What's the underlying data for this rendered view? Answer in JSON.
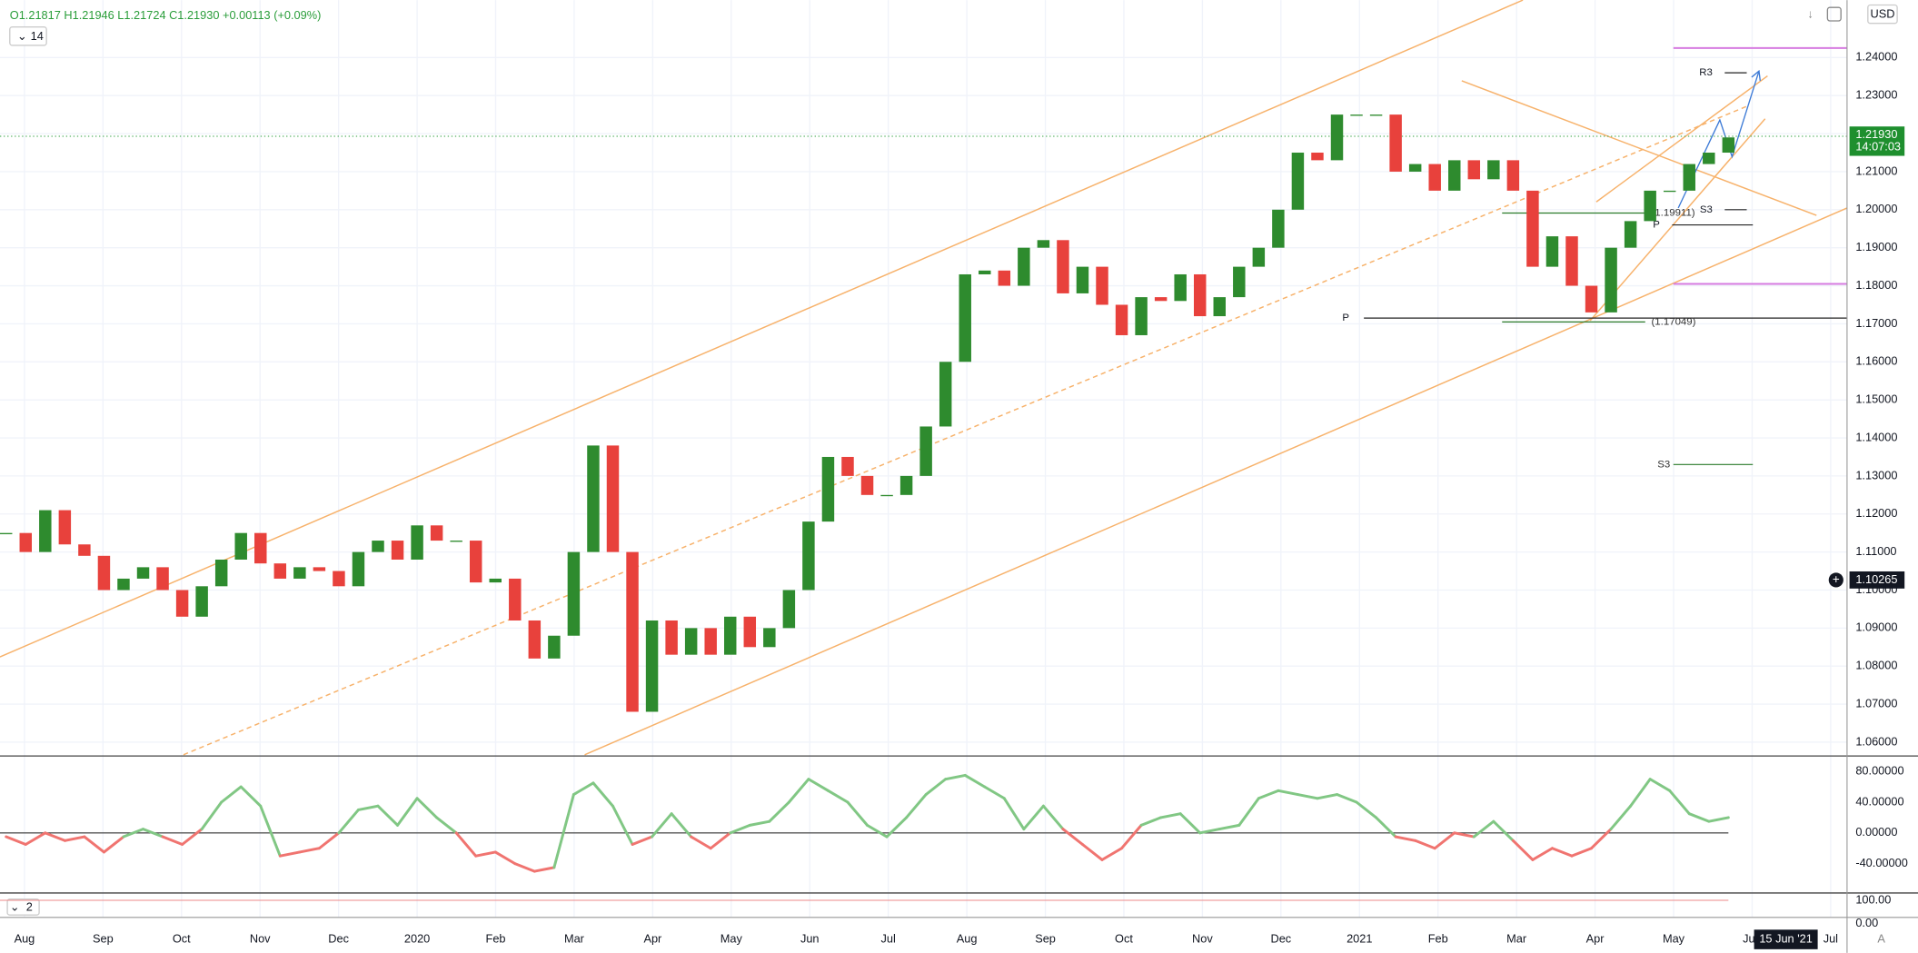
{
  "chart_data": {
    "type": "candlestick",
    "header": {
      "ohlc": "O1.21817 H1.21946 L1.21724 C1.21930 +0.00113 (+0.09%)",
      "interval": "14",
      "currency": "USD"
    },
    "categories": [
      "Aug",
      "Sep",
      "Oct",
      "Nov",
      "Dec",
      "2020",
      "Feb",
      "Mar",
      "Apr",
      "May",
      "Jun",
      "Jul",
      "Aug",
      "Sep",
      "Oct",
      "Nov",
      "Dec",
      "2021",
      "Feb",
      "Mar",
      "Apr",
      "May",
      "Jun",
      "Jul"
    ],
    "close": [
      1.115,
      1.11,
      1.121,
      1.112,
      1.109,
      1.1,
      1.103,
      1.106,
      1.1,
      1.093,
      1.101,
      1.108,
      1.115,
      1.107,
      1.103,
      1.106,
      1.105,
      1.101,
      1.11,
      1.113,
      1.108,
      1.117,
      1.113,
      1.113,
      1.102,
      1.103,
      1.092,
      1.082,
      1.088,
      1.11,
      1.138,
      1.11,
      1.068,
      1.092,
      1.083,
      1.09,
      1.083,
      1.093,
      1.085,
      1.09,
      1.1,
      1.118,
      1.135,
      1.13,
      1.125,
      1.125,
      1.13,
      1.143,
      1.16,
      1.183,
      1.184,
      1.18,
      1.19,
      1.192,
      1.178,
      1.185,
      1.175,
      1.167,
      1.177,
      1.176,
      1.183,
      1.172,
      1.177,
      1.185,
      1.19,
      1.2,
      1.215,
      1.213,
      1.225,
      1.225,
      1.225,
      1.21,
      1.212,
      1.205,
      1.213,
      1.208,
      1.213,
      1.205,
      1.185,
      1.193,
      1.18,
      1.173,
      1.19,
      1.197,
      1.205,
      1.205,
      1.212,
      1.215,
      1.219
    ],
    "up_color": "#2e8b2e",
    "down_color": "#e8413c",
    "ylim": [
      1.0567,
      1.2551
    ],
    "yticks": [
      {
        "value": 1.06,
        "label": "1.06000"
      },
      {
        "value": 1.07,
        "label": "1.07000"
      },
      {
        "value": 1.08,
        "label": "1.08000"
      },
      {
        "value": 1.09,
        "label": "1.09000"
      },
      {
        "value": 1.1,
        "label": "1.10000"
      },
      {
        "value": 1.11,
        "label": "1.11000"
      },
      {
        "value": 1.12,
        "label": "1.12000"
      },
      {
        "value": 1.13,
        "label": "1.13000"
      },
      {
        "value": 1.14,
        "label": "1.14000"
      },
      {
        "value": 1.15,
        "label": "1.15000"
      },
      {
        "value": 1.16,
        "label": "1.16000"
      },
      {
        "value": 1.17,
        "label": "1.17000"
      },
      {
        "value": 1.18,
        "label": "1.18000"
      },
      {
        "value": 1.19,
        "label": "1.19000"
      },
      {
        "value": 1.2,
        "label": "1.20000"
      },
      {
        "value": 1.21,
        "label": "1.21000"
      },
      {
        "value": 1.22,
        "label": "1.22000"
      },
      {
        "value": 1.23,
        "label": "1.23000"
      },
      {
        "value": 1.24,
        "label": "1.24000"
      }
    ],
    "grid": true,
    "last_price": {
      "value": 1.2193,
      "label": "1.21930"
    },
    "countdown": "14:07:03",
    "crosshair_price": 1.10265,
    "crosshair_date": "15 Jun '21",
    "levels": [
      {
        "label": "R3",
        "value": 1.236
      },
      {
        "label": "S3",
        "value": 1.2
      },
      {
        "label": "P",
        "value": 1.196
      },
      {
        "label": "P",
        "value": 1.1715
      },
      {
        "label": "(1.19911)",
        "value": 1.19911
      },
      {
        "label": "(1.17049)",
        "value": 1.17049
      },
      {
        "label": "S3",
        "value": 1.133
      }
    ],
    "magenta_levels": [
      1.2425,
      1.1805
    ],
    "magenta_color": "#d67be0",
    "oscillator": {
      "values": [
        -5,
        -15,
        0,
        -10,
        -5,
        -25,
        -5,
        5,
        -5,
        -15,
        5,
        40,
        60,
        35,
        -30,
        -25,
        -20,
        0,
        30,
        35,
        10,
        45,
        20,
        0,
        -30,
        -25,
        -40,
        -50,
        -45,
        50,
        65,
        35,
        -15,
        -5,
        25,
        -5,
        -20,
        0,
        10,
        15,
        40,
        70,
        55,
        40,
        10,
        -5,
        20,
        50,
        70,
        75,
        60,
        45,
        5,
        35,
        5,
        -15,
        -35,
        -20,
        10,
        20,
        25,
        0,
        5,
        10,
        45,
        55,
        50,
        45,
        50,
        40,
        20,
        -5,
        -10,
        -20,
        0,
        -5,
        15,
        -10,
        -35,
        -20,
        -30,
        -20,
        5,
        35,
        70,
        55,
        25,
        15,
        20
      ],
      "up_color": "#81c784",
      "down_color": "#f07470",
      "ylim": [
        -75,
        97
      ],
      "yticks": [
        {
          "value": 80,
          "label": "80.00000"
        },
        {
          "value": 40,
          "label": "40.00000"
        },
        {
          "value": 0,
          "label": "0.00000"
        },
        {
          "value": -40,
          "label": "-40.00000"
        }
      ]
    },
    "indicator2": {
      "label": "2",
      "ylim": [
        0,
        100
      ],
      "yticks": [
        {
          "value": 100,
          "label": "100.00"
        },
        {
          "value": 0,
          "label": "0.00"
        }
      ]
    }
  }
}
